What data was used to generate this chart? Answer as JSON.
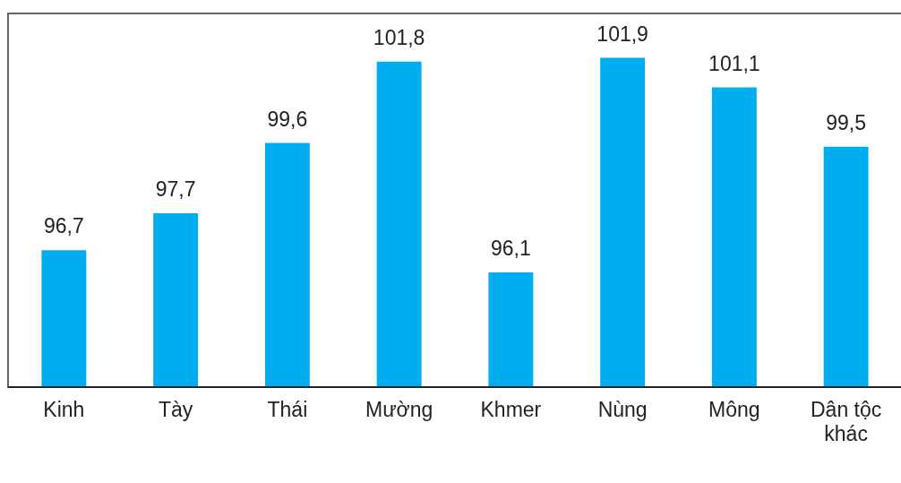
{
  "chart_data": {
    "type": "bar",
    "categories": [
      "Kinh",
      "Tày",
      "Thái",
      "Mường",
      "Khmer",
      "Nùng",
      "Mông",
      "Dân tộc khác"
    ],
    "values": [
      96.7,
      97.7,
      99.6,
      101.8,
      96.1,
      101.9,
      101.1,
      99.5
    ],
    "value_labels": [
      "96,7",
      "97,7",
      "99,6",
      "101,8",
      "96,1",
      "101,9",
      "101,1",
      "99,5"
    ],
    "color": "#00adef",
    "ylim": [
      93,
      103.1
    ],
    "tick_labels": "x",
    "grid": false
  }
}
